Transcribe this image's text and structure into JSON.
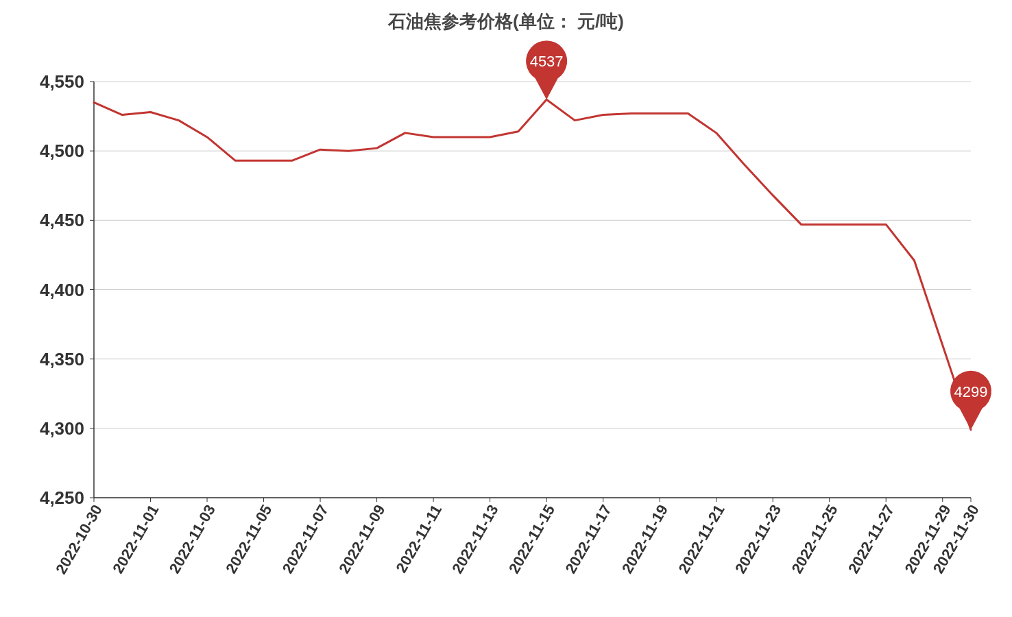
{
  "chart_data": {
    "type": "line",
    "title": "石油焦参考价格(单位：  元/吨)",
    "x": [
      "2022-10-30",
      "2022-10-31",
      "2022-11-01",
      "2022-11-02",
      "2022-11-03",
      "2022-11-04",
      "2022-11-05",
      "2022-11-06",
      "2022-11-07",
      "2022-11-08",
      "2022-11-09",
      "2022-11-10",
      "2022-11-11",
      "2022-11-12",
      "2022-11-13",
      "2022-11-14",
      "2022-11-15",
      "2022-11-16",
      "2022-11-17",
      "2022-11-18",
      "2022-11-19",
      "2022-11-20",
      "2022-11-21",
      "2022-11-22",
      "2022-11-23",
      "2022-11-24",
      "2022-11-25",
      "2022-11-26",
      "2022-11-27",
      "2022-11-28",
      "2022-11-29",
      "2022-11-30"
    ],
    "series": [
      {
        "color": "#c23531",
        "values": [
          4535,
          4526,
          4528,
          4522,
          4510,
          4493,
          4493,
          4493,
          4501,
          4500,
          4502,
          4513,
          4510,
          4510,
          4510,
          4514,
          4537,
          4522,
          4526,
          4527,
          4527,
          4527,
          4513,
          4490,
          4468,
          4447,
          4447,
          4447,
          4447,
          4421,
          4360,
          4299
        ]
      }
    ],
    "xlim": [
      "2022-10-30",
      "2022-11-30"
    ],
    "xticks": [
      "2022-10-30",
      "2022-11-01",
      "2022-11-03",
      "2022-11-05",
      "2022-11-07",
      "2022-11-09",
      "2022-11-11",
      "2022-11-13",
      "2022-11-15",
      "2022-11-17",
      "2022-11-19",
      "2022-11-21",
      "2022-11-23",
      "2022-11-25",
      "2022-11-27",
      "2022-11-29",
      "2022-11-30"
    ],
    "ylim": [
      4250,
      4550
    ],
    "yticks": [
      {
        "value": 4250,
        "label": "4,250"
      },
      {
        "value": 4300,
        "label": "4,300"
      },
      {
        "value": 4350,
        "label": "4,350"
      },
      {
        "value": 4400,
        "label": "4,400"
      },
      {
        "value": 4450,
        "label": "4,450"
      },
      {
        "value": 4500,
        "label": "4,500"
      },
      {
        "value": 4550,
        "label": "4,550"
      }
    ],
    "grid": "y",
    "marker": "none",
    "line_style": "solid",
    "annotations": [
      {
        "text": "4537",
        "x": "2022-11-15",
        "y": 4537
      },
      {
        "text": "4299",
        "x": "2022-11-30",
        "y": 4299
      }
    ]
  }
}
